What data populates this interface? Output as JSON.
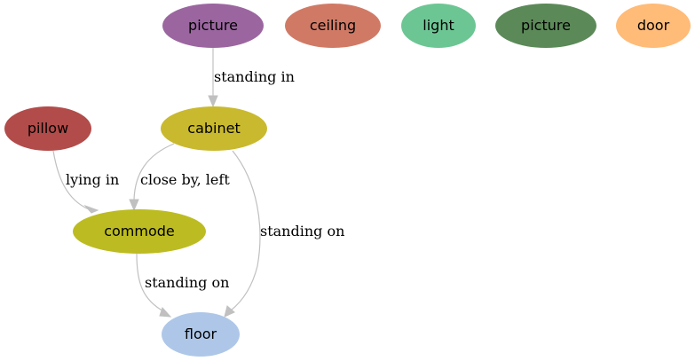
{
  "nodes": {
    "picture_purple": {
      "label": "picture",
      "color": "#9b66a0"
    },
    "ceiling": {
      "label": "ceiling",
      "color": "#d07a66"
    },
    "light": {
      "label": "light",
      "color": "#6cc694"
    },
    "picture_green": {
      "label": "picture",
      "color": "#5b8a58"
    },
    "door": {
      "label": "door",
      "color": "#ffbb78"
    },
    "pillow": {
      "label": "pillow",
      "color": "#b24c4a"
    },
    "cabinet": {
      "label": "cabinet",
      "color": "#c9b92e"
    },
    "commode": {
      "label": "commode",
      "color": "#bcbc22"
    },
    "floor": {
      "label": "floor",
      "color": "#aec7e8"
    }
  },
  "edges": [
    {
      "from": "picture_purple",
      "to": "cabinet",
      "label": "standing in"
    },
    {
      "from": "pillow",
      "to": "commode",
      "label": "lying in"
    },
    {
      "from": "cabinet",
      "to": "commode",
      "label": "close by, left"
    },
    {
      "from": "cabinet",
      "to": "floor",
      "label": "standing on"
    },
    {
      "from": "commode",
      "to": "floor",
      "label": "standing on"
    }
  ],
  "edge_color": "#c0c0c0"
}
